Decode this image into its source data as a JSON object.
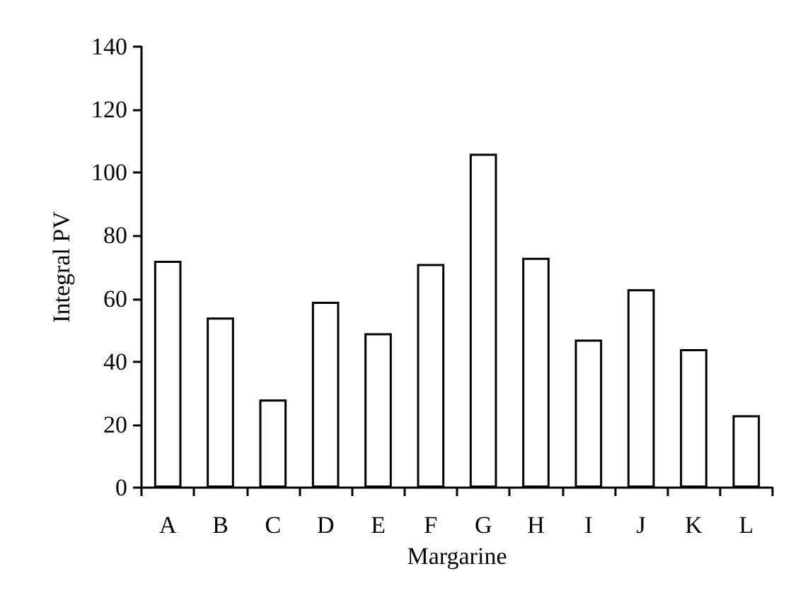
{
  "chart_data": {
    "type": "bar",
    "xlabel": "Margarine",
    "ylabel": "Integral PV",
    "categories": [
      "A",
      "B",
      "C",
      "D",
      "E",
      "F",
      "G",
      "H",
      "I",
      "J",
      "K",
      "L"
    ],
    "values": [
      72,
      54,
      28,
      59,
      49,
      71,
      106,
      73,
      47,
      63,
      44,
      23
    ],
    "color": "#ffffff",
    "ylim": [
      0,
      140
    ],
    "yticks": [
      0,
      20,
      40,
      60,
      80,
      100,
      120,
      140
    ],
    "grid": false
  }
}
